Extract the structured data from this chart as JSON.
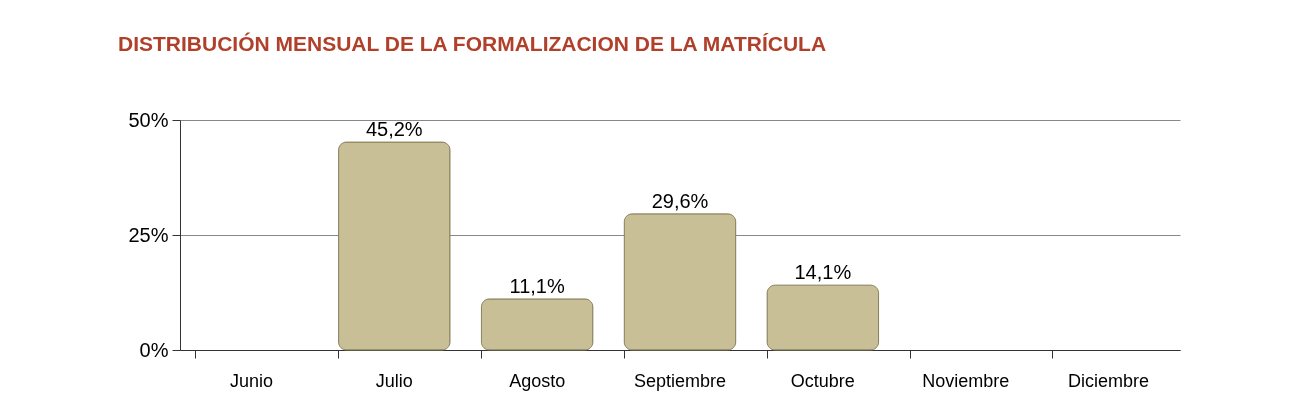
{
  "chart_data": {
    "type": "bar",
    "title": "DISTRIBUCIÓN MENSUAL DE LA FORMALIZACION DE LA MATRÍCULA",
    "categories": [
      "Junio",
      "Julio",
      "Agosto",
      "Septiembre",
      "Octubre",
      "Noviembre",
      "Diciembre"
    ],
    "values": [
      null,
      45.2,
      11.1,
      29.6,
      14.1,
      null,
      null
    ],
    "value_labels": [
      null,
      "45,2%",
      "11,1%",
      "29,6%",
      "14,1%",
      null,
      null
    ],
    "color": "#c8bf96",
    "ylim": [
      0,
      50
    ],
    "yticks": [
      {
        "value": 0,
        "label": "0%"
      },
      {
        "value": 25,
        "label": "25%"
      },
      {
        "value": 50,
        "label": "50%"
      }
    ],
    "grid": "y"
  }
}
